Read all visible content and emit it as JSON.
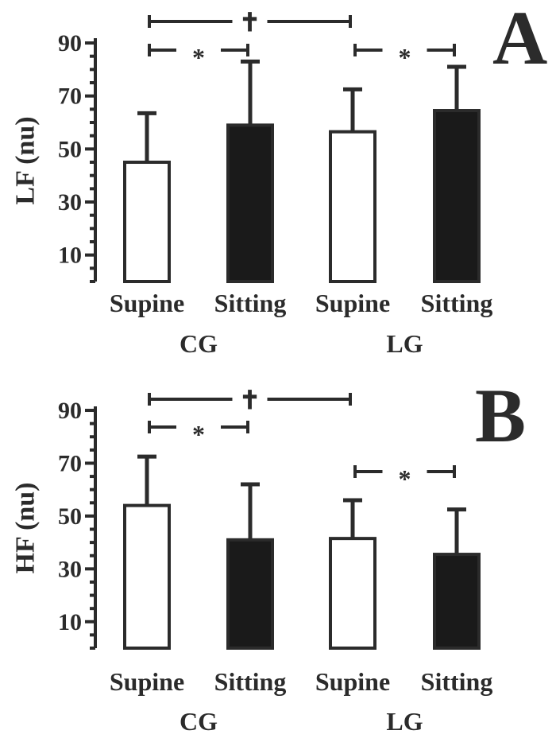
{
  "chart_data": [
    {
      "type": "bar",
      "panel": "A",
      "ylabel": "LF (nu)",
      "yticks": [
        10,
        30,
        50,
        70,
        90
      ],
      "ylim": [
        0,
        100
      ],
      "categories": [
        "Supine",
        "Sitting",
        "Supine",
        "Sitting"
      ],
      "groups": [
        "CG",
        "LG"
      ],
      "values": [
        45,
        59,
        56.5,
        64.5
      ],
      "errors": [
        18.5,
        24,
        16,
        16.5
      ],
      "fills": [
        "open",
        "filled",
        "open",
        "filled"
      ],
      "annotations": [
        {
          "label": "✝",
          "from": 0,
          "to": 2,
          "level": 1
        },
        {
          "label": "*",
          "from": 0,
          "to": 1,
          "level": 0
        },
        {
          "label": "*",
          "from": 2,
          "to": 3,
          "level": 0
        }
      ]
    },
    {
      "type": "bar",
      "panel": "B",
      "ylabel": "HF (nu)",
      "yticks": [
        10,
        30,
        50,
        70,
        90
      ],
      "ylim": [
        0,
        100
      ],
      "categories": [
        "Supine",
        "Sitting",
        "Supine",
        "Sitting"
      ],
      "groups": [
        "CG",
        "LG"
      ],
      "values": [
        54,
        41,
        41.5,
        35.5
      ],
      "errors": [
        18.5,
        21,
        14.5,
        17
      ],
      "fills": [
        "open",
        "filled",
        "open",
        "filled"
      ],
      "annotations": [
        {
          "label": "✝",
          "from": 0,
          "to": 2,
          "level": 1
        },
        {
          "label": "*",
          "from": 0,
          "to": 1,
          "level": 0
        },
        {
          "label": "*",
          "from": 2,
          "to": 3,
          "level": -1
        }
      ]
    }
  ],
  "colors": {
    "ink": "#2b2b2b",
    "bar_filled": "#1a1a1a",
    "bar_open": "#ffffff"
  }
}
